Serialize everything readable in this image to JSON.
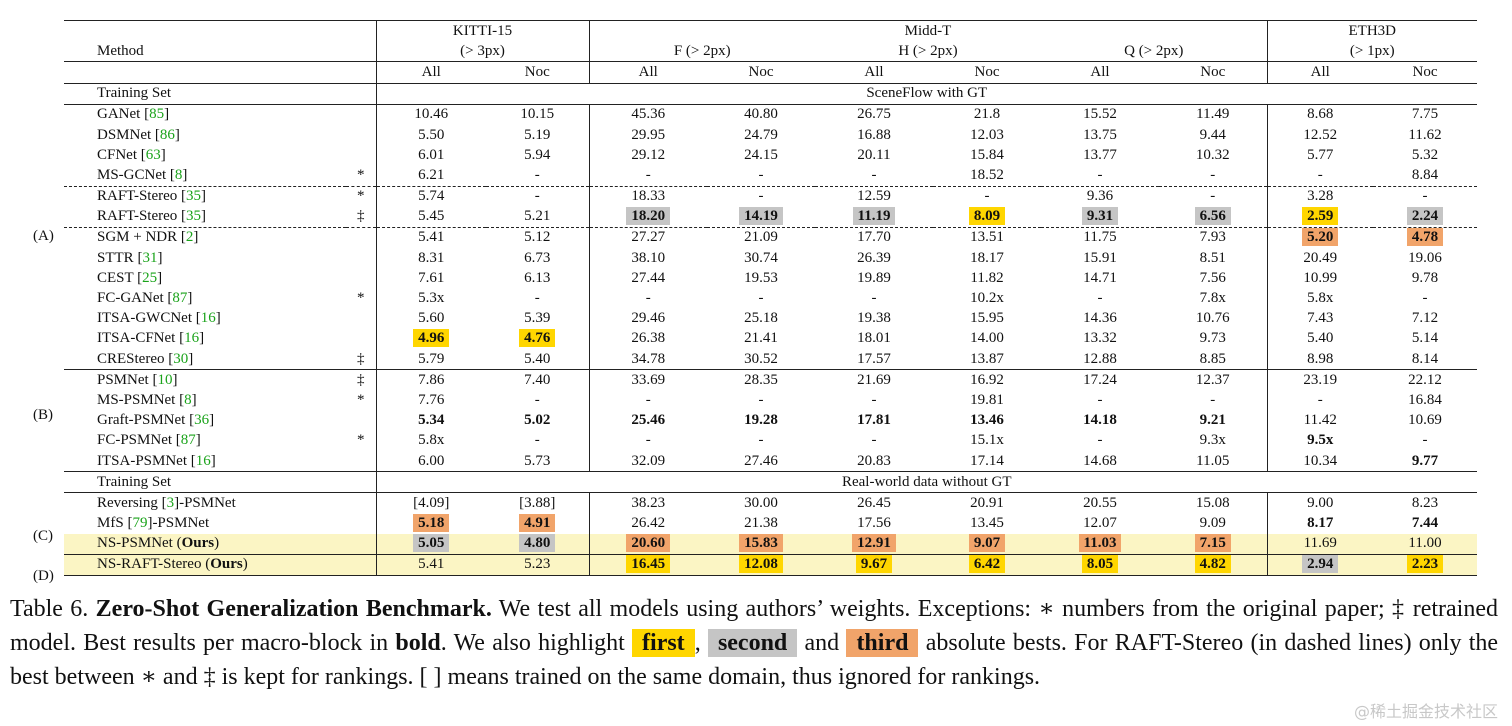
{
  "table": {
    "method_header": "Method",
    "datasets": [
      {
        "name": "KITTI-15",
        "sub": "(> 3px)"
      },
      {
        "name": "Midd-T",
        "subs": [
          "F (> 2px)",
          "H (> 2px)",
          "Q (> 2px)"
        ]
      },
      {
        "name": "ETH3D",
        "sub": "(> 1px)"
      }
    ],
    "col_labels": [
      "All",
      "Noc",
      "All",
      "Noc",
      "All",
      "Noc",
      "All",
      "Noc",
      "All",
      "Noc"
    ],
    "training_set_label": "Training Set",
    "training_set_1": "SceneFlow with GT",
    "training_set_2": "Real-world data without GT",
    "groups": {
      "A": "(A)",
      "B": "(B)",
      "C": "(C)",
      "D": "(D)"
    },
    "block1": [
      {
        "name": "GANet",
        "ref": "85",
        "flag": "",
        "vals": [
          "10.46",
          "10.15",
          "45.36",
          "40.80",
          "26.75",
          "21.8",
          "15.52",
          "11.49",
          "8.68",
          "7.75"
        ]
      },
      {
        "name": "DSMNet",
        "ref": "86",
        "flag": "",
        "vals": [
          "5.50",
          "5.19",
          "29.95",
          "24.79",
          "16.88",
          "12.03",
          "13.75",
          "9.44",
          "12.52",
          "11.62"
        ]
      },
      {
        "name": "CFNet",
        "ref": "63",
        "flag": "",
        "vals": [
          "6.01",
          "5.94",
          "29.12",
          "24.15",
          "20.11",
          "15.84",
          "13.77",
          "10.32",
          "5.77",
          "5.32"
        ]
      },
      {
        "name": "MS-GCNet",
        "ref": "8",
        "flag": "*",
        "vals": [
          "6.21",
          "-",
          "-",
          "-",
          "-",
          "18.52",
          "-",
          "-",
          "-",
          "8.84"
        ]
      },
      {
        "name": "RAFT-Stereo",
        "ref": "35",
        "flag": "*",
        "vals": [
          "5.74",
          "-",
          "18.33",
          "-",
          "12.59",
          "-",
          "9.36",
          "-",
          "3.28",
          "-"
        ]
      },
      {
        "name": "RAFT-Stereo",
        "ref": "35",
        "flag": "‡",
        "vals": [
          "5.45",
          "5.21",
          "18.20",
          "14.19",
          "11.19",
          "8.09",
          "9.31",
          "6.56",
          "2.59",
          "2.24"
        ]
      },
      {
        "name": "SGM + NDR",
        "ref": "2",
        "flag": "",
        "vals": [
          "5.41",
          "5.12",
          "27.27",
          "21.09",
          "17.70",
          "13.51",
          "11.75",
          "7.93",
          "5.20",
          "4.78"
        ]
      },
      {
        "name": "STTR",
        "ref": "31",
        "flag": "",
        "vals": [
          "8.31",
          "6.73",
          "38.10",
          "30.74",
          "26.39",
          "18.17",
          "15.91",
          "8.51",
          "20.49",
          "19.06"
        ]
      },
      {
        "name": "CEST",
        "ref": "25",
        "flag": "",
        "vals": [
          "7.61",
          "6.13",
          "27.44",
          "19.53",
          "19.89",
          "11.82",
          "14.71",
          "7.56",
          "10.99",
          "9.78"
        ]
      },
      {
        "name": "FC-GANet",
        "ref": "87",
        "flag": "*",
        "vals": [
          "5.3x",
          "-",
          "-",
          "-",
          "-",
          "10.2x",
          "-",
          "7.8x",
          "5.8x",
          "-"
        ]
      },
      {
        "name": "ITSA-GWCNet",
        "ref": "16",
        "flag": "",
        "vals": [
          "5.60",
          "5.39",
          "29.46",
          "25.18",
          "19.38",
          "15.95",
          "14.36",
          "10.76",
          "7.43",
          "7.12"
        ]
      },
      {
        "name": "ITSA-CFNet",
        "ref": "16",
        "flag": "",
        "vals": [
          "4.96",
          "4.76",
          "26.38",
          "21.41",
          "18.01",
          "14.00",
          "13.32",
          "9.73",
          "5.40",
          "5.14"
        ]
      },
      {
        "name": "CREStereo",
        "ref": "30",
        "flag": "‡",
        "vals": [
          "5.79",
          "5.40",
          "34.78",
          "30.52",
          "17.57",
          "13.87",
          "12.88",
          "8.85",
          "8.98",
          "8.14"
        ]
      }
    ],
    "block2": [
      {
        "name": "PSMNet",
        "ref": "10",
        "flag": "‡",
        "vals": [
          "7.86",
          "7.40",
          "33.69",
          "28.35",
          "21.69",
          "16.92",
          "17.24",
          "12.37",
          "23.19",
          "22.12"
        ]
      },
      {
        "name": "MS-PSMNet",
        "ref": "8",
        "flag": "*",
        "vals": [
          "7.76",
          "-",
          "-",
          "-",
          "-",
          "19.81",
          "-",
          "-",
          "-",
          "16.84"
        ]
      },
      {
        "name": "Graft-PSMNet",
        "ref": "36",
        "flag": "",
        "vals": [
          "5.34",
          "5.02",
          "25.46",
          "19.28",
          "17.81",
          "13.46",
          "14.18",
          "9.21",
          "11.42",
          "10.69"
        ]
      },
      {
        "name": "FC-PSMNet",
        "ref": "87",
        "flag": "*",
        "vals": [
          "5.8x",
          "-",
          "-",
          "-",
          "-",
          "15.1x",
          "-",
          "9.3x",
          "9.5x",
          "-"
        ]
      },
      {
        "name": "ITSA-PSMNet",
        "ref": "16",
        "flag": "",
        "vals": [
          "6.00",
          "5.73",
          "32.09",
          "27.46",
          "20.83",
          "17.14",
          "14.68",
          "11.05",
          "10.34",
          "9.77"
        ]
      }
    ],
    "block3": [
      {
        "pre": "Reversing ",
        "ref": "3",
        "post": "-PSMNet",
        "vals": [
          "[4.09]",
          "[3.88]",
          "38.23",
          "30.00",
          "26.45",
          "20.91",
          "20.55",
          "15.08",
          "9.00",
          "8.23"
        ]
      },
      {
        "pre": "MfS ",
        "ref": "79",
        "post": "-PSMNet",
        "vals": [
          "5.18",
          "4.91",
          "26.42",
          "21.38",
          "17.56",
          "13.45",
          "12.07",
          "9.09",
          "8.17",
          "7.44"
        ]
      },
      {
        "pre": "NS-PSMNet (",
        "bold": "Ours",
        "post": ")",
        "vals": [
          "5.05",
          "4.80",
          "20.60",
          "15.83",
          "12.91",
          "9.07",
          "11.03",
          "7.15",
          "11.69",
          "11.00"
        ]
      }
    ],
    "block4": [
      {
        "pre": "NS-RAFT-Stereo (",
        "bold": "Ours",
        "post": ")",
        "vals": [
          "5.41",
          "5.23",
          "16.45",
          "12.08",
          "9.67",
          "6.42",
          "8.05",
          "4.82",
          "2.94",
          "2.23"
        ]
      }
    ]
  },
  "caption": {
    "label": "Table 6.",
    "title": "Zero-Shot Generalization Benchmark.",
    "s1": "We test all models using authors’ weights. Exceptions: ∗ numbers from the original paper; ‡ retrained model. Best results per macro-block in",
    "bold_word": "bold",
    "s2": ". We also highlight",
    "first": "first",
    "comma": ",",
    "second": "second",
    "and": "and",
    "third": "third",
    "s3": "absolute bests. For RAFT-Stereo (in dashed lines) only the best between ∗ and ‡ is kept for rankings. [ ] means trained on the same domain, thus ignored for rankings."
  },
  "watermark": "@稀土掘金技术社区",
  "colors": {
    "first": "#ffd600",
    "second": "#c5c5c5",
    "third": "#f1a46a",
    "ours_row": "#fbf5c4",
    "ref_link": "#1aa31a"
  }
}
